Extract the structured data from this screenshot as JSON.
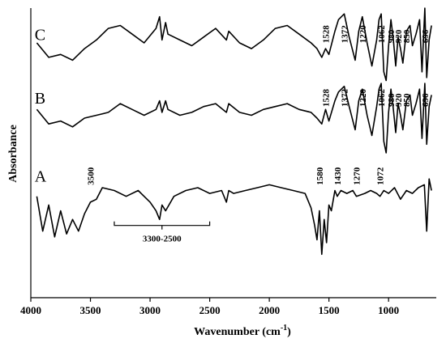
{
  "chart_data": {
    "type": "line",
    "title": "",
    "xlabel": "Wavenumber (cm",
    "xlabel_sup": "-1",
    "xlabel_close": ")",
    "ylabel": "Absorbance",
    "xlim": [
      4000,
      600
    ],
    "x_reversed": true,
    "x_ticks": [
      4000,
      3500,
      3000,
      2500,
      2000,
      1500,
      1000
    ],
    "y_ticks": false,
    "grid": false,
    "series": [
      {
        "name": "C",
        "baseline": 0.84,
        "x": [
          3950,
          3850,
          3750,
          3650,
          3550,
          3450,
          3350,
          3250,
          3150,
          3050,
          2950,
          2920,
          2900,
          2870,
          2850,
          2750,
          2650,
          2550,
          2450,
          2360,
          2340,
          2250,
          2150,
          2050,
          1950,
          1850,
          1750,
          1650,
          1600,
          1560,
          1528,
          1500,
          1450,
          1420,
          1372,
          1330,
          1280,
          1250,
          1220,
          1180,
          1140,
          1100,
          1080,
          1062,
          1040,
          1020,
          1000,
          980,
          960,
          940,
          920,
          900,
          880,
          850,
          820,
          800,
          770,
          740,
          720,
          696,
          680,
          660,
          640
        ],
        "y": [
          0.04,
          -0.01,
          0.0,
          -0.02,
          0.02,
          0.05,
          0.09,
          0.1,
          0.07,
          0.04,
          0.09,
          0.13,
          0.05,
          0.11,
          0.07,
          0.05,
          0.03,
          0.06,
          0.09,
          0.05,
          0.08,
          0.04,
          0.02,
          0.05,
          0.09,
          0.1,
          0.07,
          0.04,
          0.02,
          -0.01,
          0.02,
          0.0,
          0.08,
          0.12,
          0.14,
          0.06,
          -0.02,
          0.08,
          0.13,
          0.04,
          -0.04,
          0.05,
          0.12,
          0.14,
          -0.06,
          -0.09,
          0.03,
          0.12,
          0.05,
          -0.04,
          0.06,
          0.02,
          -0.03,
          0.08,
          0.1,
          0.03,
          0.07,
          0.12,
          -0.06,
          0.16,
          -0.08,
          0.05,
          0.1
        ]
      },
      {
        "name": "B",
        "baseline": 0.62,
        "x": [
          3950,
          3850,
          3750,
          3650,
          3550,
          3450,
          3350,
          3250,
          3150,
          3050,
          2950,
          2920,
          2900,
          2870,
          2850,
          2750,
          2650,
          2550,
          2450,
          2360,
          2340,
          2250,
          2150,
          2050,
          1950,
          1850,
          1750,
          1650,
          1600,
          1560,
          1528,
          1500,
          1450,
          1420,
          1372,
          1330,
          1280,
          1250,
          1220,
          1180,
          1140,
          1100,
          1080,
          1062,
          1040,
          1020,
          1000,
          980,
          960,
          940,
          920,
          900,
          880,
          850,
          820,
          800,
          770,
          740,
          720,
          696,
          680,
          660,
          640
        ],
        "y": [
          0.03,
          -0.02,
          -0.01,
          -0.03,
          0.0,
          0.01,
          0.02,
          0.05,
          0.03,
          0.01,
          0.03,
          0.06,
          0.02,
          0.06,
          0.03,
          0.01,
          0.02,
          0.04,
          0.05,
          0.02,
          0.05,
          0.02,
          0.01,
          0.03,
          0.04,
          0.05,
          0.03,
          0.02,
          0.0,
          -0.02,
          0.03,
          -0.01,
          0.06,
          0.09,
          0.11,
          0.04,
          -0.04,
          0.06,
          0.1,
          0.01,
          -0.06,
          0.04,
          0.1,
          0.12,
          -0.08,
          -0.12,
          0.02,
          0.1,
          0.03,
          -0.05,
          0.05,
          0.01,
          -0.04,
          0.06,
          0.08,
          0.01,
          0.05,
          0.1,
          -0.07,
          0.12,
          -0.09,
          0.04,
          0.08
        ]
      },
      {
        "name": "A",
        "baseline": 0.35,
        "x": [
          3950,
          3900,
          3850,
          3800,
          3750,
          3700,
          3650,
          3600,
          3550,
          3500,
          3450,
          3400,
          3300,
          3200,
          3100,
          3050,
          3000,
          2950,
          2920,
          2900,
          2870,
          2800,
          2700,
          2600,
          2500,
          2400,
          2360,
          2340,
          2300,
          2200,
          2100,
          2000,
          1900,
          1800,
          1700,
          1650,
          1620,
          1600,
          1580,
          1560,
          1540,
          1520,
          1500,
          1480,
          1450,
          1430,
          1400,
          1350,
          1300,
          1270,
          1200,
          1150,
          1100,
          1072,
          1040,
          1000,
          950,
          900,
          850,
          800,
          750,
          700,
          680,
          660,
          640
        ],
        "y": [
          0.0,
          -0.12,
          -0.03,
          -0.14,
          -0.05,
          -0.13,
          -0.08,
          -0.12,
          -0.06,
          -0.02,
          -0.01,
          0.03,
          0.02,
          0.0,
          0.02,
          0.0,
          -0.02,
          -0.05,
          -0.08,
          -0.03,
          -0.05,
          0.0,
          0.02,
          0.03,
          0.01,
          0.02,
          -0.02,
          0.02,
          0.01,
          0.02,
          0.03,
          0.04,
          0.03,
          0.02,
          0.01,
          -0.04,
          -0.1,
          -0.15,
          -0.05,
          -0.2,
          -0.08,
          -0.16,
          -0.03,
          -0.05,
          0.02,
          0.0,
          0.02,
          0.01,
          0.02,
          0.0,
          0.01,
          0.02,
          0.01,
          0.0,
          0.02,
          0.01,
          0.03,
          -0.01,
          0.02,
          0.01,
          0.03,
          0.04,
          -0.12,
          0.06,
          0.02
        ]
      }
    ],
    "peak_labels": [
      {
        "series": "C",
        "labels": [
          "1528",
          "1372",
          "1220",
          "1062",
          "980",
          "920",
          "850",
          "696"
        ],
        "x": [
          1528,
          1372,
          1220,
          1062,
          980,
          920,
          850,
          696
        ]
      },
      {
        "series": "B",
        "labels": [
          "1528",
          "1372",
          "1220",
          "1062",
          "980",
          "920",
          "850",
          "696"
        ],
        "x": [
          1528,
          1372,
          1220,
          1062,
          980,
          920,
          850,
          696
        ]
      },
      {
        "series": "A",
        "labels": [
          "3500",
          "1580",
          "1430",
          "1270",
          "1072"
        ],
        "x": [
          3500,
          1580,
          1430,
          1270,
          1072
        ]
      }
    ],
    "range_annotation": {
      "label": "3300-2500",
      "from": 3300,
      "to": 2500,
      "series": "A"
    }
  }
}
